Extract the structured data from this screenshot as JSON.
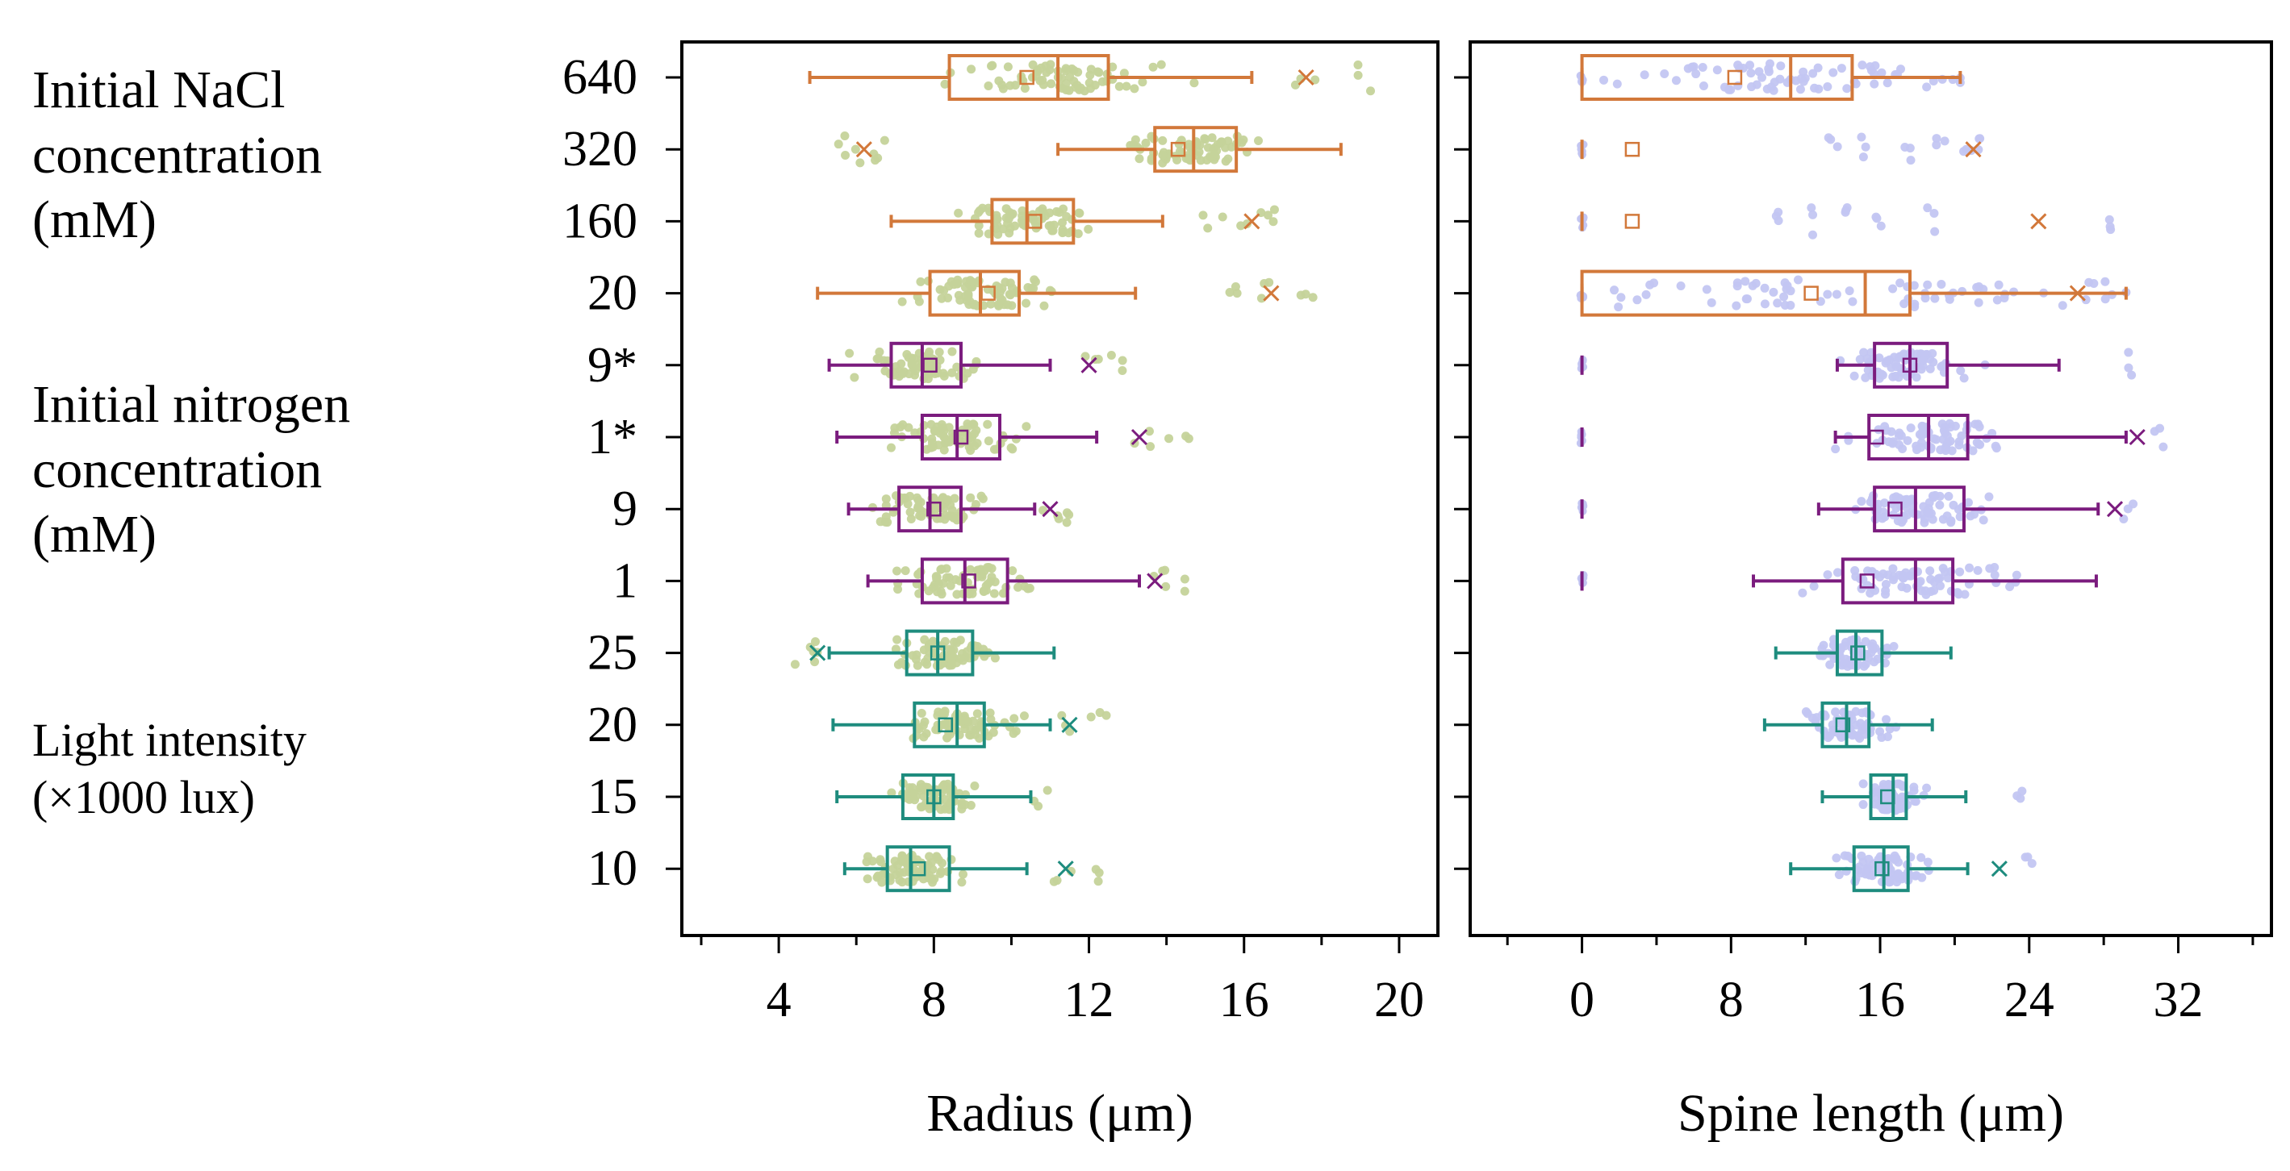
{
  "groups": [
    {
      "label": "Initial NaCl\nconcentration\n(mM)"
    },
    {
      "label": "Initial nitrogen\nconcentration\n(mM)"
    },
    {
      "label": "Light intensity\n(×1000  lux)"
    }
  ],
  "colors": {
    "nacl": "#D2783A",
    "nitrogen": "#7B1C7E",
    "light": "#1E8C7E",
    "radius_points": "#C5D39A",
    "spine_points": "#C3C6F2"
  },
  "chart_data": [
    {
      "type": "box",
      "xlabel": "Radius (μm)",
      "xlim": [
        1.5,
        21
      ],
      "xticks": [
        4,
        8,
        12,
        16,
        20
      ],
      "xtick_labels": [
        "4",
        "8",
        "12",
        "16",
        "20"
      ],
      "grid": false,
      "categories": [
        "640",
        "320",
        "160",
        "20",
        "9*",
        "1*",
        "9",
        "1",
        "25",
        "20",
        "15",
        "10"
      ],
      "rows": [
        {
          "cat": "640",
          "group": "nacl",
          "wlo": 4.8,
          "q1": 8.4,
          "med": 11.2,
          "q3": 12.5,
          "whi": 16.2,
          "mean": 10.4,
          "outliers": [
            17.6,
            19.0
          ],
          "xmarks": [
            17.6
          ]
        },
        {
          "cat": "320",
          "group": "nacl",
          "wlo": 11.2,
          "q1": 13.7,
          "med": 14.7,
          "q3": 15.8,
          "whi": 18.5,
          "mean": 14.3,
          "outliers": [
            5.8,
            6.2,
            6.5
          ],
          "xmarks": [
            6.2
          ]
        },
        {
          "cat": "160",
          "group": "nacl",
          "wlo": 6.9,
          "q1": 9.5,
          "med": 10.4,
          "q3": 11.6,
          "whi": 13.9,
          "mean": 10.6,
          "outliers": [
            15.2,
            16.2,
            16.8
          ],
          "xmarks": [
            16.2
          ]
        },
        {
          "cat": "20",
          "group": "nacl",
          "wlo": 5.0,
          "q1": 7.9,
          "med": 9.2,
          "q3": 10.2,
          "whi": 13.2,
          "mean": 9.4,
          "outliers": [
            15.6,
            16.7,
            17.5
          ],
          "xmarks": [
            16.7
          ]
        },
        {
          "cat": "9*",
          "group": "nitrogen",
          "wlo": 5.3,
          "q1": 6.9,
          "med": 7.7,
          "q3": 8.7,
          "whi": 11.0,
          "mean": 7.9,
          "outliers": [
            12.0,
            12.7
          ],
          "xmarks": [
            12.0
          ]
        },
        {
          "cat": "1*",
          "group": "nitrogen",
          "wlo": 5.5,
          "q1": 7.7,
          "med": 8.6,
          "q3": 9.7,
          "whi": 12.2,
          "mean": 8.7,
          "outliers": [
            13.3,
            14.3
          ],
          "xmarks": [
            13.3
          ]
        },
        {
          "cat": "9",
          "group": "nitrogen",
          "wlo": 5.8,
          "q1": 7.1,
          "med": 7.9,
          "q3": 8.7,
          "whi": 10.6,
          "mean": 8.0,
          "outliers": [
            11.0,
            11.4
          ],
          "xmarks": [
            11.0
          ]
        },
        {
          "cat": "1",
          "group": "nitrogen",
          "wlo": 6.3,
          "q1": 7.7,
          "med": 8.8,
          "q3": 9.9,
          "whi": 13.3,
          "mean": 8.9,
          "outliers": [
            13.7,
            14.2
          ],
          "xmarks": [
            13.7
          ]
        },
        {
          "cat": "25",
          "group": "light",
          "wlo": 5.3,
          "q1": 7.3,
          "med": 8.1,
          "q3": 9.0,
          "whi": 11.1,
          "mean": 8.1,
          "outliers": [
            4.7,
            5.0
          ],
          "xmarks": [
            5.0
          ]
        },
        {
          "cat": "20",
          "group": "light",
          "wlo": 5.4,
          "q1": 7.5,
          "med": 8.6,
          "q3": 9.3,
          "whi": 11.0,
          "mean": 8.3,
          "outliers": [
            11.5,
            12.3
          ],
          "xmarks": [
            11.5
          ]
        },
        {
          "cat": "15",
          "group": "light",
          "wlo": 5.5,
          "q1": 7.2,
          "med": 8.0,
          "q3": 8.5,
          "whi": 10.5,
          "mean": 8.0,
          "outliers": [
            10.8
          ],
          "xmarks": []
        },
        {
          "cat": "10",
          "group": "light",
          "wlo": 5.7,
          "q1": 6.8,
          "med": 7.4,
          "q3": 8.4,
          "whi": 10.4,
          "mean": 7.6,
          "outliers": [
            11.4,
            12.4
          ],
          "xmarks": [
            11.4
          ]
        }
      ]
    },
    {
      "type": "box",
      "xlabel": "Spine length (μm)",
      "xlim": [
        -6,
        37
      ],
      "xticks": [
        0,
        8,
        16,
        24,
        32
      ],
      "xtick_labels": [
        "0",
        "8",
        "16",
        "24",
        "32"
      ],
      "grid": false,
      "categories": [
        "640",
        "320",
        "160",
        "20",
        "9*",
        "1*",
        "9",
        "1",
        "25",
        "20",
        "15",
        "10"
      ],
      "rows": [
        {
          "cat": "640",
          "group": "nacl",
          "wlo": 0.0,
          "q1": 0.0,
          "med": 11.2,
          "q3": 14.5,
          "whi": 20.3,
          "mean": 8.2,
          "outliers": [],
          "xmarks": [],
          "zero": true
        },
        {
          "cat": "320",
          "group": "nacl",
          "wlo": null,
          "q1": null,
          "med": null,
          "q3": null,
          "whi": null,
          "mean": 2.7,
          "outliers": [
            13.5,
            15.0,
            17.5,
            19.2,
            20.7,
            21.5
          ],
          "xmarks": [
            21.0
          ],
          "zero": true
        },
        {
          "cat": "160",
          "group": "nacl",
          "wlo": null,
          "q1": null,
          "med": null,
          "q3": null,
          "whi": null,
          "mean": 2.7,
          "outliers": [
            10.3,
            12.3,
            14.4,
            16.0,
            18.8,
            28.5
          ],
          "xmarks": [
            24.5
          ],
          "zero": true
        },
        {
          "cat": "20",
          "group": "nacl",
          "wlo": 0.0,
          "q1": 0.0,
          "med": 15.2,
          "q3": 17.6,
          "whi": 29.2,
          "mean": 12.3,
          "outliers": [],
          "xmarks": [
            26.6
          ],
          "zero": true
        },
        {
          "cat": "9*",
          "group": "nitrogen",
          "wlo": 13.7,
          "q1": 15.7,
          "med": 17.6,
          "q3": 19.6,
          "whi": 25.6,
          "mean": 17.6,
          "outliers": [
            29.3
          ],
          "xmarks": [],
          "zero": true
        },
        {
          "cat": "1*",
          "group": "nitrogen",
          "wlo": 13.6,
          "q1": 15.4,
          "med": 18.6,
          "q3": 20.7,
          "whi": 29.2,
          "mean": 15.8,
          "outliers": [
            31.0
          ],
          "xmarks": [
            29.8
          ],
          "zero": true
        },
        {
          "cat": "9",
          "group": "nitrogen",
          "wlo": 12.7,
          "q1": 15.7,
          "med": 17.9,
          "q3": 20.5,
          "whi": 27.7,
          "mean": 16.8,
          "outliers": [
            29.3
          ],
          "xmarks": [
            28.6
          ],
          "zero": true
        },
        {
          "cat": "1",
          "group": "nitrogen",
          "wlo": 9.2,
          "q1": 14.0,
          "med": 17.9,
          "q3": 19.9,
          "whi": 27.6,
          "mean": 15.3,
          "outliers": [],
          "xmarks": [],
          "zero": true
        },
        {
          "cat": "25",
          "group": "light",
          "wlo": 10.4,
          "q1": 13.7,
          "med": 14.7,
          "q3": 16.1,
          "whi": 19.8,
          "mean": 14.8,
          "outliers": [],
          "xmarks": [],
          "zero": false
        },
        {
          "cat": "20",
          "group": "light",
          "wlo": 9.8,
          "q1": 12.9,
          "med": 14.2,
          "q3": 15.4,
          "whi": 18.8,
          "mean": 14.0,
          "outliers": [],
          "xmarks": [],
          "zero": false
        },
        {
          "cat": "15",
          "group": "light",
          "wlo": 12.9,
          "q1": 15.5,
          "med": 16.7,
          "q3": 17.4,
          "whi": 20.6,
          "mean": 16.4,
          "outliers": [
            23.4
          ],
          "xmarks": [],
          "zero": false
        },
        {
          "cat": "10",
          "group": "light",
          "wlo": 11.2,
          "q1": 14.6,
          "med": 16.2,
          "q3": 17.5,
          "whi": 20.7,
          "mean": 16.1,
          "outliers": [
            24.0
          ],
          "xmarks": [
            22.4
          ],
          "zero": false
        }
      ]
    }
  ]
}
